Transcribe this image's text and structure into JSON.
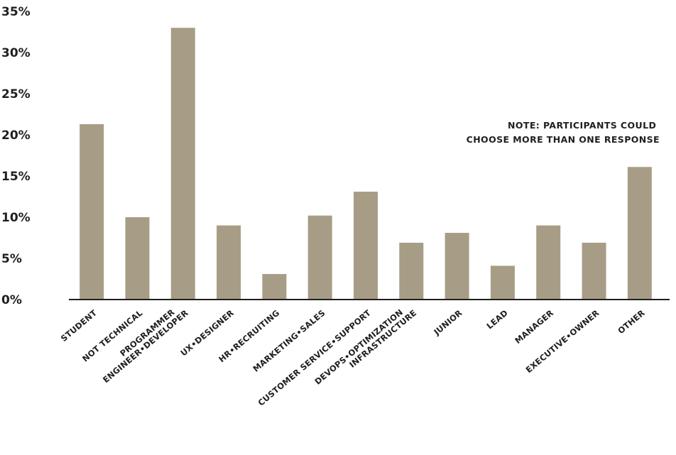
{
  "chart_data": {
    "type": "bar",
    "categories": [
      [
        "STUDENT"
      ],
      [
        "NOT TECHNICAL"
      ],
      [
        "PROGRAMMER",
        "ENGINEER•DEVELOPER"
      ],
      [
        "UX•DESIGNER"
      ],
      [
        "HR•RECRUITING"
      ],
      [
        "MARKETING•SALES"
      ],
      [
        "CUSTOMER SERVICE•SUPPORT"
      ],
      [
        "DEVOPS•OPTIMIZATION",
        "INFRASTRUCTURE"
      ],
      [
        "JUNIOR"
      ],
      [
        "LEAD"
      ],
      [
        "MANAGER"
      ],
      [
        "EXECUTIVE•OWNER"
      ],
      [
        "OTHER"
      ]
    ],
    "values": [
      21.3,
      10.0,
      33.0,
      9.0,
      3.1,
      10.2,
      13.1,
      6.9,
      8.1,
      4.1,
      9.0,
      6.9,
      16.1
    ],
    "yticks": [
      "0%",
      "5%",
      "10%",
      "15%",
      "20%",
      "25%",
      "30%",
      "35%"
    ],
    "ylim": [
      0,
      35
    ],
    "grid": false,
    "bar_color": "#a79d86",
    "axis_color": "#1f1f1f",
    "note": [
      "NOTE: PARTICIPANTS COULD",
      "CHOOSE MORE THAN ONE RESPONSE"
    ]
  }
}
